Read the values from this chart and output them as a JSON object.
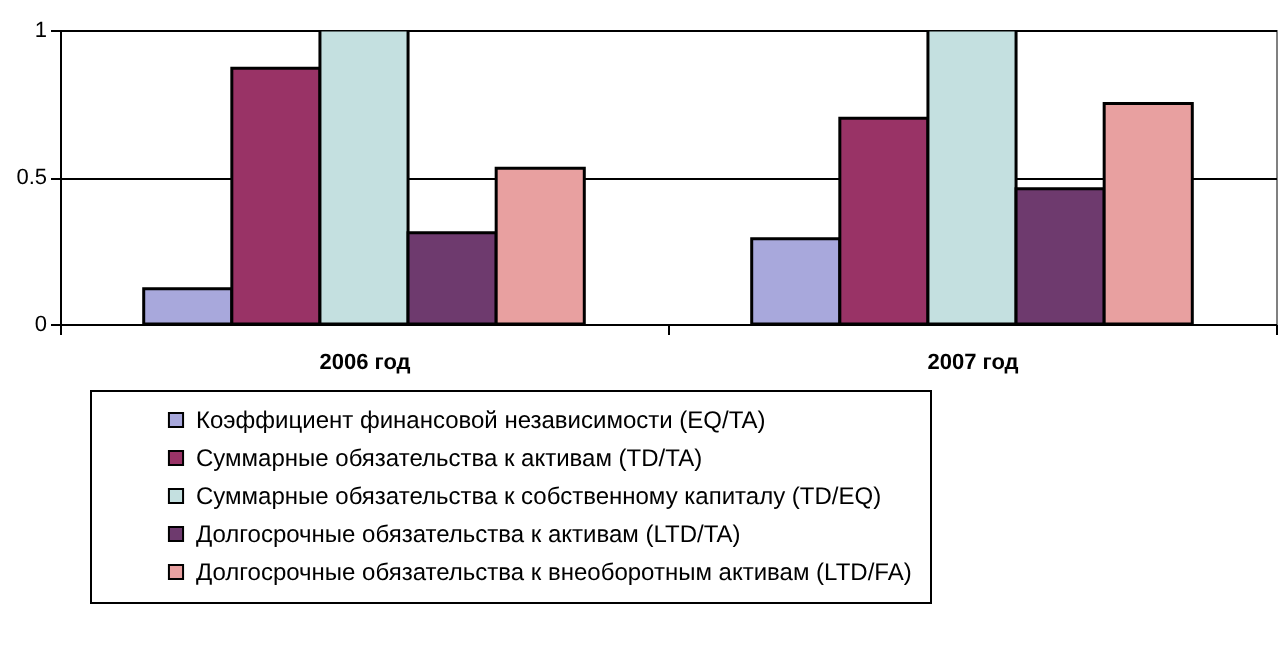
{
  "chart_data": {
    "type": "bar",
    "categories": [
      "2006 год",
      "2007 год"
    ],
    "series": [
      {
        "name": "Коэффициент финансовой независимости (EQ/TA)",
        "color": "#a8a8dc",
        "values": [
          0.12,
          0.29
        ]
      },
      {
        "name": "Суммарные обязательства к активам (TD/TA)",
        "color": "#993366",
        "values": [
          0.87,
          0.7
        ]
      },
      {
        "name": "Суммарные обязательства к собственному капиталу (TD/EQ)",
        "color": "#c4e0e0",
        "values": [
          1,
          1
        ]
      },
      {
        "name": "Долгосрочные обязательства к активам (LTD/TA)",
        "color": "#6e3a6e",
        "values": [
          0.31,
          0.46
        ]
      },
      {
        "name": "Долгосрочные обязательства к внеоборотным активам (LTD/FA)",
        "color": "#e8a0a0",
        "values": [
          0.53,
          0.75
        ]
      }
    ],
    "ylim": [
      0,
      1
    ],
    "yticks": [
      0,
      0.5,
      1
    ],
    "grid": "y",
    "legend": "bottom"
  }
}
